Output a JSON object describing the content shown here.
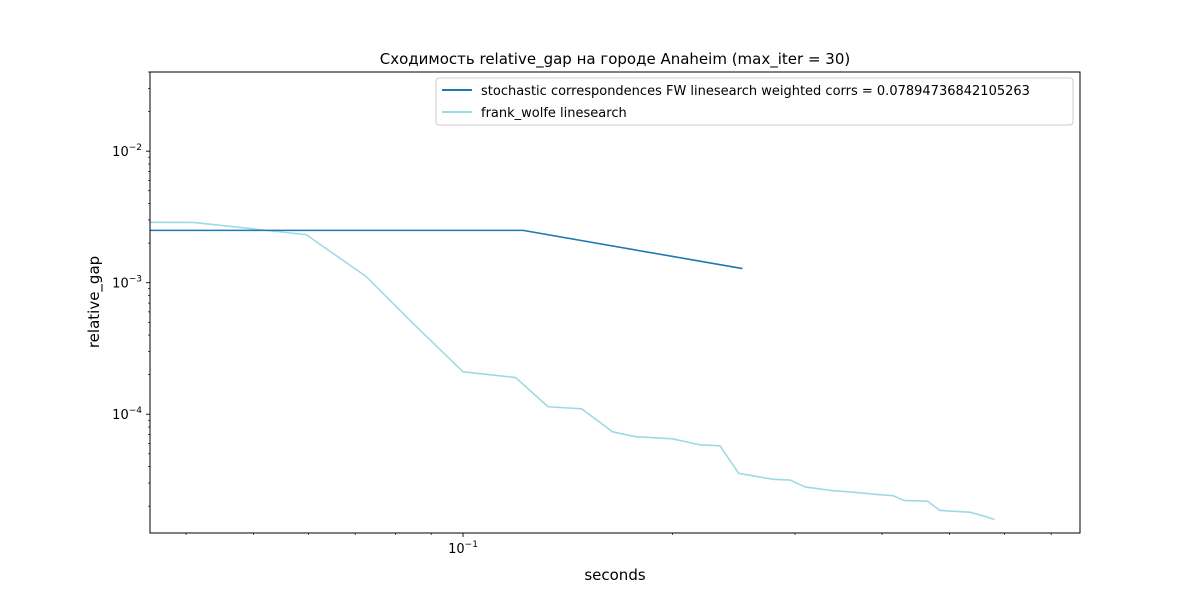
{
  "chart_data": {
    "type": "line",
    "title": "Сходимость relative_gap на городе Anaheim  (max_iter = 30)",
    "xlabel": "seconds",
    "ylabel": "relative_gap",
    "xscale": "log",
    "yscale": "log",
    "xlim": [
      0.0355,
      0.77
    ],
    "ylim": [
      1.25e-05,
      0.04
    ],
    "x_major_ticks": [
      {
        "value": 0.1,
        "base": "10",
        "exp": "−1"
      }
    ],
    "y_major_ticks": [
      {
        "value": 0.0001,
        "base": "10",
        "exp": "−4"
      },
      {
        "value": 0.001,
        "base": "10",
        "exp": "−3"
      },
      {
        "value": 0.01,
        "base": "10",
        "exp": "−2"
      }
    ],
    "grid": false,
    "legend_position": "upper right",
    "series": [
      {
        "name": "stochastic correspondences FW linesearch weighted corrs = 0.07894736842105263",
        "color": "#1f77b4",
        "x": [
          0.0355,
          0.122,
          0.252
        ],
        "y": [
          0.0025,
          0.0025,
          0.00128
        ]
      },
      {
        "name": "frank_wolfe linesearch",
        "color": "#9edae5",
        "x": [
          0.0355,
          0.041,
          0.0595,
          0.0725,
          0.0838,
          0.1,
          0.119,
          0.1325,
          0.148,
          0.164,
          0.177,
          0.2,
          0.219,
          0.234,
          0.249,
          0.261,
          0.279,
          0.295,
          0.31,
          0.34,
          0.365,
          0.395,
          0.415,
          0.43,
          0.465,
          0.484,
          0.497,
          0.535,
          0.565,
          0.58
        ],
        "y": [
          0.00288,
          0.00287,
          0.00232,
          0.00112,
          0.00052,
          0.00021,
          0.00019,
          0.000114,
          0.00011,
          7.35e-05,
          6.75e-05,
          6.5e-05,
          5.85e-05,
          5.75e-05,
          3.55e-05,
          3.4e-05,
          3.2e-05,
          3.16e-05,
          2.8e-05,
          2.62e-05,
          2.55e-05,
          2.45e-05,
          2.4e-05,
          2.21e-05,
          2.18e-05,
          1.86e-05,
          1.84e-05,
          1.8e-05,
          1.66e-05,
          1.58e-05
        ]
      }
    ]
  }
}
